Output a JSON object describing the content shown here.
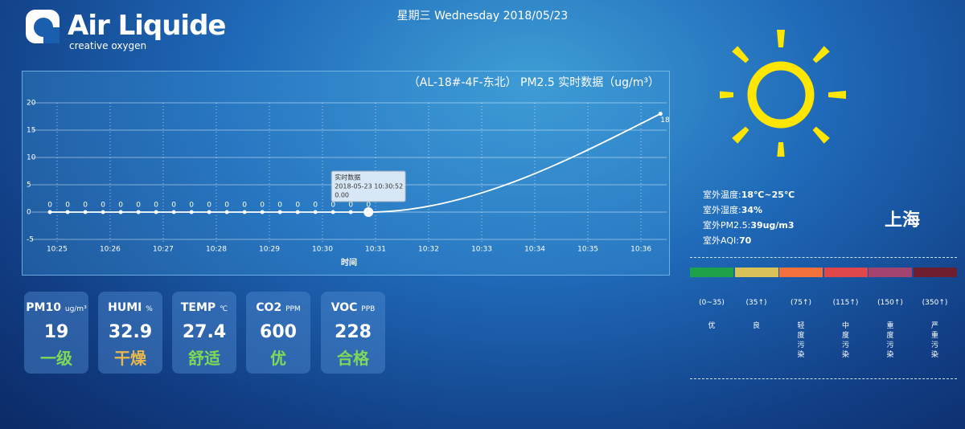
{
  "header": {
    "logo_name": "Air Liquide",
    "logo_tagline": "creative oxygen",
    "date": "星期三 Wednesday 2018/05/23"
  },
  "chart_data": {
    "type": "line",
    "title": "（AL-18#-4F-东北） PM2.5 实时数据（ug/m³）",
    "x_label": "时间",
    "x": [
      "10:24:52",
      "10:25:12",
      "10:25:32",
      "10:25:52",
      "10:26:12",
      "10:26:32",
      "10:26:52",
      "10:27:12",
      "10:27:32",
      "10:27:52",
      "10:28:12",
      "10:28:32",
      "10:28:52",
      "10:29:12",
      "10:29:32",
      "10:29:52",
      "10:30:12",
      "10:30:32",
      "10:30:52",
      "10:36:22"
    ],
    "series": [
      {
        "name": "实时数据",
        "color": "#ffffff",
        "values": [
          0,
          0,
          0,
          0,
          0,
          0,
          0,
          0,
          0,
          0,
          0,
          0,
          0,
          0,
          0,
          0,
          0,
          0,
          0,
          18
        ]
      }
    ],
    "xlim": [
      "10:24:31",
      "10:36:29"
    ],
    "xticks": [
      "10:25",
      "10:26",
      "10:27",
      "10:28",
      "10:29",
      "10:30",
      "10:31",
      "10:32",
      "10:33",
      "10:34",
      "10:35",
      "10:36"
    ],
    "ylim": [
      -5,
      20
    ],
    "yticks": [
      -5,
      0,
      5,
      10,
      15,
      20
    ],
    "grid": true,
    "tooltip": {
      "title": "实时数据",
      "datetime": "2018-05-23 10:30:52",
      "value": "0.00"
    }
  },
  "cards": [
    {
      "name": "PM10",
      "unit": "ug/m³",
      "value": 19,
      "status": "一级",
      "status_color": "#7ed957"
    },
    {
      "name": "HUMI",
      "unit": "%",
      "value": 32.9,
      "status": "干燥",
      "status_color": "#e8b84a"
    },
    {
      "name": "TEMP",
      "unit": "℃",
      "value": 27.4,
      "status": "舒适",
      "status_color": "#7ed957"
    },
    {
      "name": "CO2",
      "unit": "PPM",
      "value": 600,
      "status": "优",
      "status_color": "#7ed957"
    },
    {
      "name": "VOC",
      "unit": "PPB",
      "value": 228,
      "status": "合格",
      "status_color": "#7ed957"
    }
  ],
  "weather": {
    "city": "上海",
    "rows": [
      {
        "label": "室外温度:",
        "value": "18℃~25℃"
      },
      {
        "label": "室外湿度:",
        "value": "34%"
      },
      {
        "label": "室外PM2.5:",
        "value": "39ug/m3"
      },
      {
        "label": "室外AQI:",
        "value": "70"
      }
    ]
  },
  "aqi_scale": [
    {
      "range": "(0~35)",
      "level": "优",
      "color": "#1fa14a"
    },
    {
      "range": "(35↑)",
      "level": "良",
      "color": "#d9c25a"
    },
    {
      "range": "(75↑)",
      "level": "轻度污染",
      "color": "#f2703b"
    },
    {
      "range": "(115↑)",
      "level": "中度污染",
      "color": "#e0474c"
    },
    {
      "range": "(150↑)",
      "level": "重度污染",
      "color": "#a2446f"
    },
    {
      "range": "(350↑)",
      "level": "严重污染",
      "color": "#6e1f2e"
    }
  ]
}
